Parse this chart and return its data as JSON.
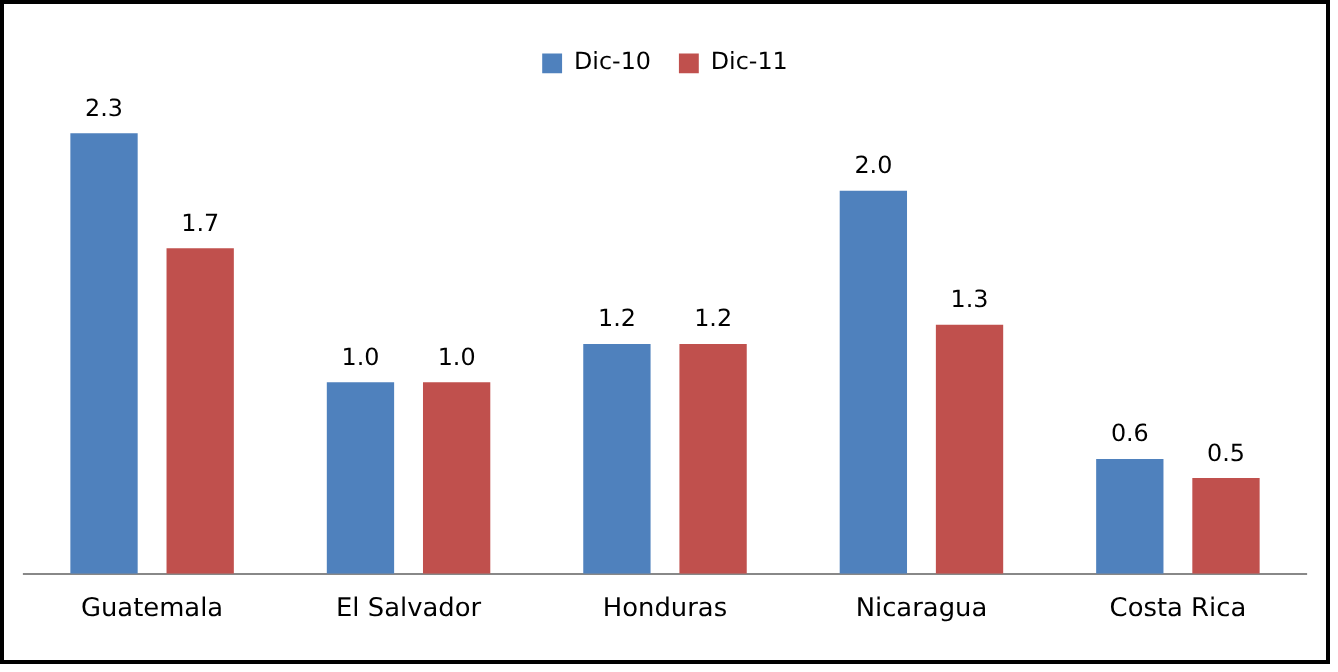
{
  "chart_data": {
    "type": "bar",
    "categories": [
      "Guatemala",
      "El Salvador",
      "Honduras",
      "Nicaragua",
      "Costa Rica"
    ],
    "series": [
      {
        "name": "Dic-10",
        "color": "#4f81bd",
        "values": [
          2.3,
          1.0,
          1.2,
          2.0,
          0.6
        ],
        "value_labels": [
          "2.3",
          "1.0",
          "1.2",
          "2.0",
          "0.6"
        ]
      },
      {
        "name": "Dic-11",
        "color": "#c0504d",
        "values": [
          1.7,
          1.0,
          1.2,
          1.3,
          0.5
        ],
        "value_labels": [
          "1.7",
          "1.0",
          "1.2",
          "1.3",
          "0.5"
        ]
      }
    ],
    "legend": "top",
    "grid": false
  }
}
